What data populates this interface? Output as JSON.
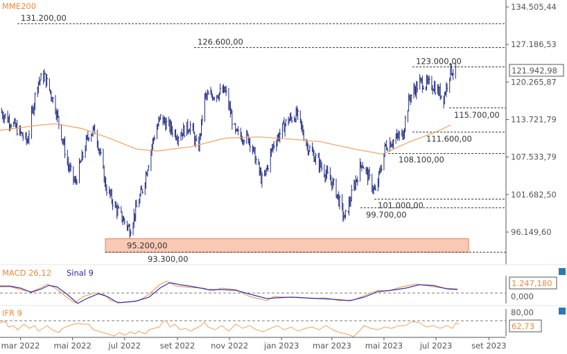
{
  "chart_data": {
    "type": "ohlc",
    "title": "MME200",
    "scale": "log",
    "ylim": [
      92000,
      136000
    ],
    "y_ticks": [
      "134.505,44",
      "127.186,53",
      "120.265,87",
      "113.721,79",
      "107.533,79",
      "101.682,50",
      "96.149,60"
    ],
    "y_tick_values": [
      134505.44,
      127186.53,
      120265.87,
      113721.79,
      107533.79,
      101682.5,
      96149.6
    ],
    "last_value_label": "121.942,98",
    "last_value": 121942.98,
    "x_ticks": [
      "mar 2022",
      "mai 2022",
      "jul 2022",
      "set 2022",
      "nov 2022",
      "jan 2023",
      "mar 2023",
      "mai 2023",
      "jul 2023",
      "set 2023"
    ],
    "x_tick_dates": [
      "2022-03-01",
      "2022-05-01",
      "2022-07-01",
      "2022-09-01",
      "2022-11-01",
      "2023-01-01",
      "2023-03-01",
      "2023-05-01",
      "2023-07-01",
      "2023-09-01"
    ],
    "price_series": {
      "dates": [
        "2022-02-05",
        "2022-02-21",
        "2022-03-09",
        "2022-03-21",
        "2022-03-29",
        "2022-04-10",
        "2022-04-26",
        "2022-05-04",
        "2022-05-20",
        "2022-05-28",
        "2022-06-09",
        "2022-06-21",
        "2022-07-07",
        "2022-07-23",
        "2022-08-04",
        "2022-08-12",
        "2022-09-01",
        "2022-09-17",
        "2022-09-25",
        "2022-10-03",
        "2022-10-15",
        "2022-10-27",
        "2022-11-08",
        "2022-11-24",
        "2022-12-10",
        "2022-12-22",
        "2023-01-07",
        "2023-01-19",
        "2023-01-31",
        "2023-02-16",
        "2023-03-04",
        "2023-03-16",
        "2023-03-28",
        "2023-04-05",
        "2023-04-21",
        "2023-05-03",
        "2023-05-23",
        "2023-05-31",
        "2023-06-12",
        "2023-06-28",
        "2023-07-10",
        "2023-07-18",
        "2023-07-24"
      ],
      "close": [
        115200,
        112800,
        110000,
        120200,
        121400,
        116400,
        106100,
        103400,
        111300,
        112000,
        102900,
        99600,
        96500,
        102900,
        110600,
        114000,
        111100,
        112800,
        108200,
        117500,
        118100,
        118600,
        111300,
        110600,
        103400,
        109400,
        113400,
        114600,
        109400,
        106100,
        102900,
        98000,
        103400,
        106700,
        101900,
        109400,
        111300,
        117500,
        120200,
        119600,
        117500,
        122500,
        121943
      ]
    },
    "mma200": {
      "label": "MME200",
      "dates": [
        "2022-02-05",
        "2022-03-25",
        "2022-04-10",
        "2022-05-12",
        "2022-06-13",
        "2022-07-15",
        "2022-08-08",
        "2022-09-17",
        "2022-10-27",
        "2022-12-06",
        "2023-01-15",
        "2023-02-16",
        "2023-03-28",
        "2023-04-29",
        "2023-05-31",
        "2023-07-02",
        "2023-07-18"
      ],
      "values": [
        111900,
        112800,
        113000,
        112200,
        110600,
        108800,
        108500,
        109200,
        110600,
        110800,
        110400,
        110000,
        108800,
        108000,
        110000,
        111700,
        112800
      ]
    },
    "levels": [
      {
        "label": "131.200,00",
        "value": 131200
      },
      {
        "label": "126.600,00",
        "value": 126600
      },
      {
        "label": "123.000,00",
        "value": 123000
      },
      {
        "label": "115.700,00",
        "value": 115700
      },
      {
        "label": "111.600,00",
        "value": 111600
      },
      {
        "label": "108.100,00",
        "value": 108100
      },
      {
        "label": "101.000,00",
        "value": 101000
      },
      {
        "label": "99.700,00",
        "value": 99700
      },
      {
        "label": "95.200,00",
        "value": 95200
      },
      {
        "label": "93.300,00",
        "value": 93300
      }
    ],
    "support_zone": {
      "from": 93300,
      "to": 95200,
      "color": "#f9c9b4"
    },
    "macd": {
      "label": "MACD 26,12",
      "signal_label": "Sinal 9",
      "value_label": "1.247,180",
      "zero_label": "0,000"
    },
    "ifr": {
      "label": "IFR 9",
      "value_label": "62,73",
      "ref_label": "80,00"
    },
    "colors": {
      "bars": "#1f2a80",
      "ma": "#f0a060",
      "macd": "#f0883a",
      "signal": "#3030b0"
    }
  }
}
